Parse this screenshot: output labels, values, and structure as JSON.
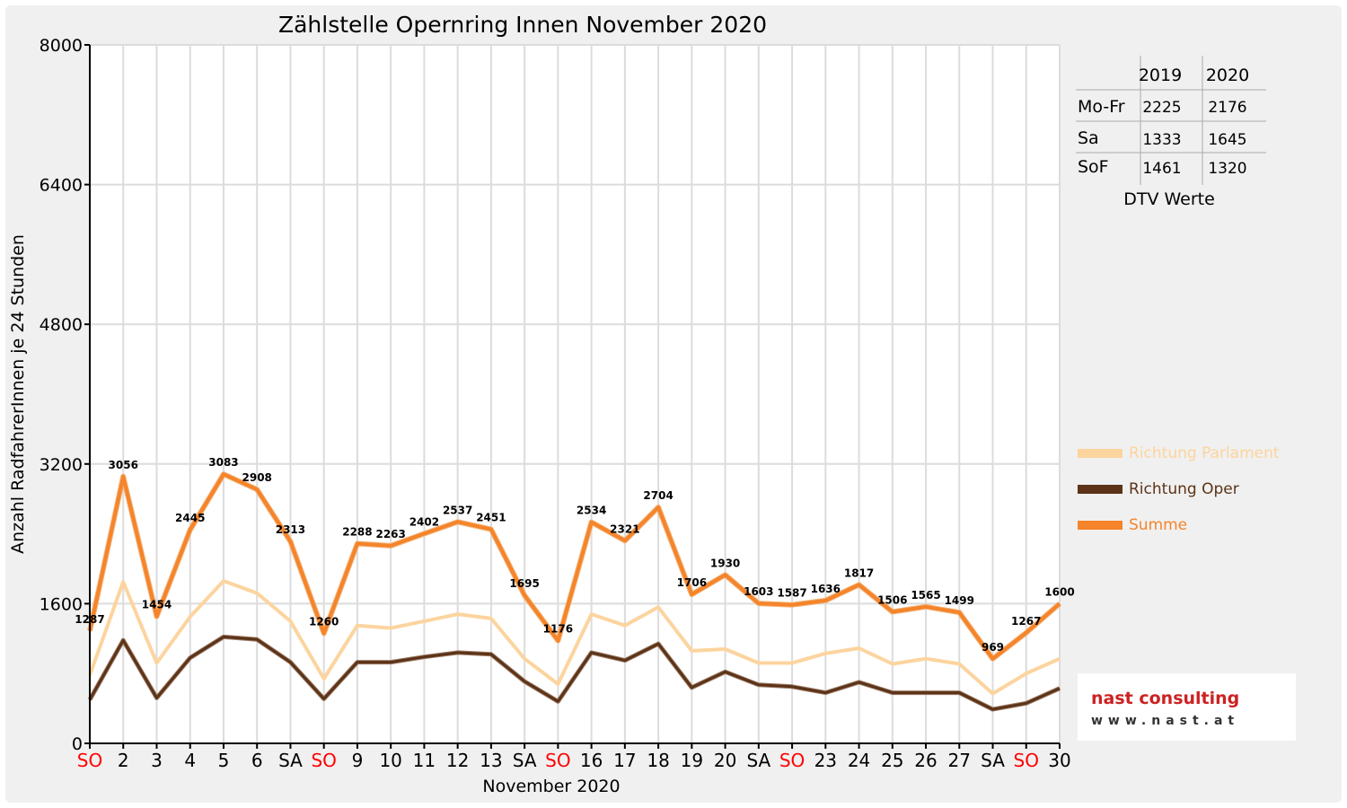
{
  "chart_data": {
    "type": "line",
    "title": "Zählstelle Opernring Innen November 2020",
    "xlabel": "November 2020",
    "ylabel": "Anzahl RadfahrerInnen je 24 Stunden",
    "ylim": [
      0,
      8000
    ],
    "yticks": [
      "0",
      "1600",
      "3200",
      "4800",
      "6400",
      "8000"
    ],
    "grid": true,
    "legend_position": "right",
    "categories": [
      "SO",
      "2",
      "3",
      "4",
      "5",
      "6",
      "SA",
      "SO",
      "9",
      "10",
      "11",
      "12",
      "13",
      "SA",
      "SO",
      "16",
      "17",
      "18",
      "19",
      "20",
      "SA",
      "SO",
      "23",
      "24",
      "25",
      "26",
      "27",
      "SA",
      "SO",
      "30"
    ],
    "red_categories": [
      0,
      7,
      14,
      21,
      28
    ],
    "series": [
      {
        "name": "Richtung Parlament",
        "color": "#fcd49e",
        "values": [
          780,
          1850,
          920,
          1450,
          1860,
          1720,
          1400,
          740,
          1350,
          1320,
          1400,
          1480,
          1430,
          970,
          680,
          1480,
          1350,
          1560,
          1060,
          1080,
          920,
          920,
          1030,
          1090,
          910,
          970,
          910,
          570,
          800,
          970
        ]
      },
      {
        "name": "Richtung Oper",
        "color": "#5c3317",
        "values": [
          500,
          1180,
          520,
          980,
          1220,
          1190,
          930,
          510,
          930,
          930,
          990,
          1040,
          1020,
          710,
          480,
          1040,
          950,
          1140,
          640,
          820,
          670,
          650,
          580,
          700,
          580,
          580,
          580,
          390,
          460,
          630
        ]
      },
      {
        "name": "Summe",
        "color": "#f5842a",
        "values": [
          1287,
          3056,
          1454,
          2445,
          3083,
          2908,
          2313,
          1260,
          2288,
          2263,
          2402,
          2537,
          2451,
          1695,
          1176,
          2534,
          2321,
          2704,
          1706,
          1930,
          1603,
          1587,
          1636,
          1817,
          1506,
          1565,
          1499,
          969,
          1267,
          1600
        ],
        "labels": [
          "1287",
          "3056",
          "1454",
          "2445",
          "3083",
          "2908",
          "2313",
          "1260",
          "2288",
          "2263",
          "2402",
          "2537",
          "2451",
          "1695",
          "1176",
          "2534",
          "2321",
          "2704",
          "1706",
          "1930",
          "1603",
          "1587",
          "1636",
          "1817",
          "1506",
          "1565",
          "1499",
          "969",
          "1267",
          "1600"
        ]
      }
    ]
  },
  "dtv_table": {
    "caption": "DTV Werte",
    "columns": [
      "2019",
      "2020"
    ],
    "rows": [
      {
        "label": "Mo-Fr",
        "v2019": "2225",
        "v2020": "2176"
      },
      {
        "label": "Sa",
        "v2019": "1333",
        "v2020": "1645"
      },
      {
        "label": "SoF",
        "v2019": "1461",
        "v2020": "1320"
      }
    ]
  },
  "logo": {
    "line1": "nast consulting",
    "line2": "www.nast.at"
  }
}
